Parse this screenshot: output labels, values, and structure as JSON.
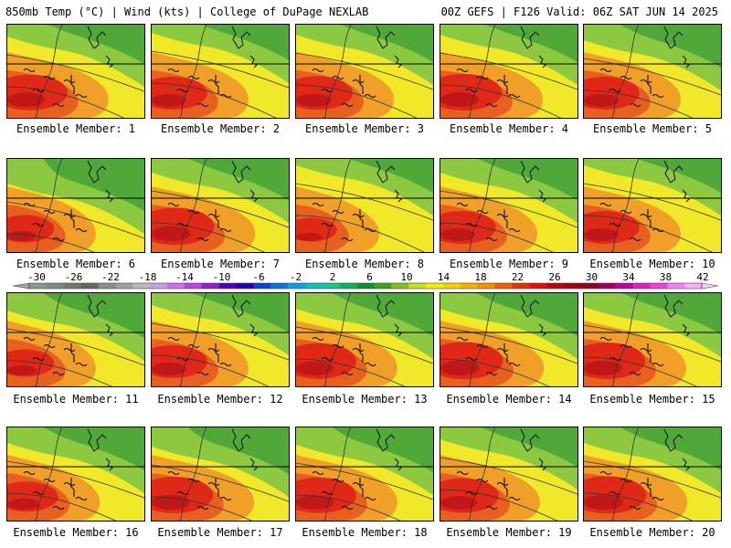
{
  "header": {
    "left_title": "850mb Temp (°C) | Wind (kts) | College of DuPage NEXLAB",
    "right_title": "00Z GEFS | F126 Valid: 06Z SAT JUN 14 2025"
  },
  "panel_label_prefix": "Ensemble Member: ",
  "members": [
    {
      "label": "Ensemble Member: 1",
      "warm": 0.78,
      "cool": 0.45
    },
    {
      "label": "Ensemble Member: 2",
      "warm": 0.7,
      "cool": 0.35
    },
    {
      "label": "Ensemble Member: 3",
      "warm": 0.72,
      "cool": 0.4
    },
    {
      "label": "Ensemble Member: 4",
      "warm": 0.8,
      "cool": 0.4
    },
    {
      "label": "Ensemble Member: 5",
      "warm": 0.7,
      "cool": 0.55
    },
    {
      "label": "Ensemble Member: 6",
      "warm": 0.55,
      "cool": 0.8
    },
    {
      "label": "Ensemble Member: 7",
      "warm": 0.82,
      "cool": 0.5
    },
    {
      "label": "Ensemble Member: 8",
      "warm": 0.45,
      "cool": 0.3
    },
    {
      "label": "Ensemble Member: 9",
      "warm": 0.7,
      "cool": 0.5
    },
    {
      "label": "Ensemble Member: 10",
      "warm": 0.7,
      "cool": 0.3
    },
    {
      "label": "Ensemble Member: 11",
      "warm": 0.55,
      "cool": 0.6
    },
    {
      "label": "Ensemble Member: 12",
      "warm": 0.7,
      "cool": 0.45
    },
    {
      "label": "Ensemble Member: 13",
      "warm": 0.78,
      "cool": 0.55
    },
    {
      "label": "Ensemble Member: 14",
      "warm": 0.82,
      "cool": 0.55
    },
    {
      "label": "Ensemble Member: 15",
      "warm": 0.8,
      "cool": 0.5
    },
    {
      "label": "Ensemble Member: 16",
      "warm": 0.62,
      "cool": 0.55
    },
    {
      "label": "Ensemble Member: 17",
      "warm": 0.8,
      "cool": 0.65
    },
    {
      "label": "Ensemble Member: 18",
      "warm": 0.78,
      "cool": 0.6
    },
    {
      "label": "Ensemble Member: 19",
      "warm": 0.75,
      "cool": 0.45
    },
    {
      "label": "Ensemble Member: 20",
      "warm": 0.82,
      "cool": 0.55
    }
  ],
  "colorbar": {
    "tick_labels": [
      "-30",
      "-26",
      "-22",
      "-18",
      "-14",
      "-10",
      "-6",
      "-2",
      "2",
      "6",
      "10",
      "14",
      "18",
      "22",
      "26",
      "30",
      "34",
      "38",
      "42"
    ],
    "colors": [
      "#8a9a8a",
      "#7e8c7e",
      "#6e7c6e",
      "#5e6a5e",
      "#8c8c8c",
      "#a0a0a0",
      "#b8b8c8",
      "#c8a0e0",
      "#d070e8",
      "#c040e0",
      "#9020d0",
      "#5000c0",
      "#2000b0",
      "#1040d0",
      "#1070e0",
      "#10a0e8",
      "#10c0c0",
      "#10c890",
      "#10b060",
      "#109030",
      "#40a020",
      "#80c020",
      "#c0e020",
      "#f0f000",
      "#f8d000",
      "#f8b000",
      "#f89000",
      "#f06000",
      "#e83000",
      "#e01010",
      "#c00010",
      "#a00010",
      "#900020",
      "#a00060",
      "#c000a0",
      "#e020c0",
      "#f040e0",
      "#f880f0",
      "#f8b0f8"
    ]
  },
  "colors": {
    "cool_green": "#50a838",
    "light_green": "#8cc840",
    "yellow": "#f0e828",
    "orange": "#f0a028",
    "deep_orange": "#e86020",
    "red": "#e02818",
    "dark_red": "#c01818"
  }
}
